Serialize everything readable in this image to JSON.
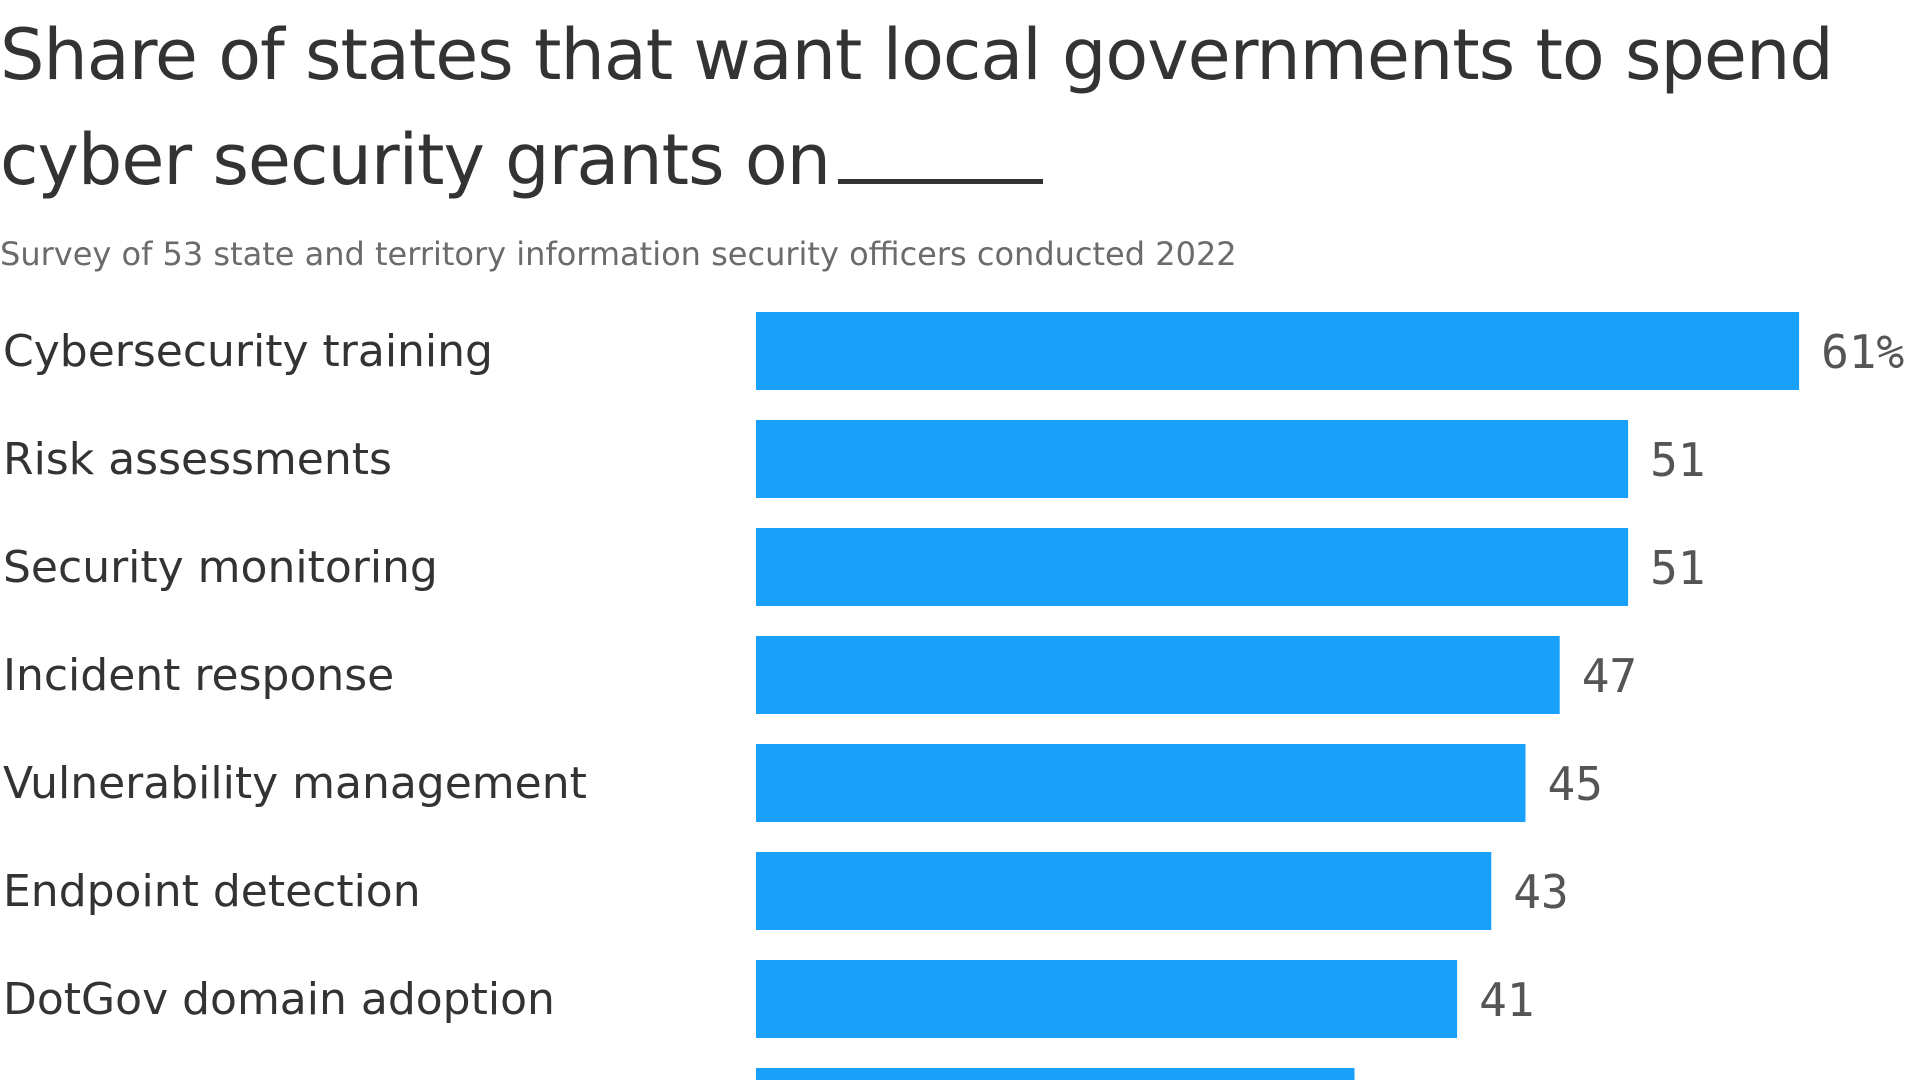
{
  "title_text": "Share of states that want local governments to spend cyber security grants on",
  "subtitle": "Survey of 53 state and territory information security officers conducted 2022",
  "colors": {
    "bar": "#18a0fb",
    "text": "#333333",
    "subtitle": "#6b6b6b",
    "value_label": "#555555"
  },
  "chart_data": {
    "type": "bar",
    "orientation": "horizontal",
    "title": "Share of states that want local governments to spend cyber security grants on",
    "subtitle": "Survey of 53 state and territory information security officers conducted 2022",
    "categories": [
      "Cybersecurity training",
      "Risk assessments",
      "Security monitoring",
      "Incident response",
      "Vulnerability management",
      "Endpoint detection",
      "DotGov domain adoption"
    ],
    "values": [
      61,
      51,
      51,
      47,
      45,
      43,
      41
    ],
    "value_labels": [
      "61%",
      "51",
      "51",
      "47",
      "45",
      "43",
      "41"
    ],
    "partial_bar_value": 35,
    "unit": "%",
    "xlim": [
      0,
      61
    ],
    "grid": false,
    "legend": "none"
  }
}
